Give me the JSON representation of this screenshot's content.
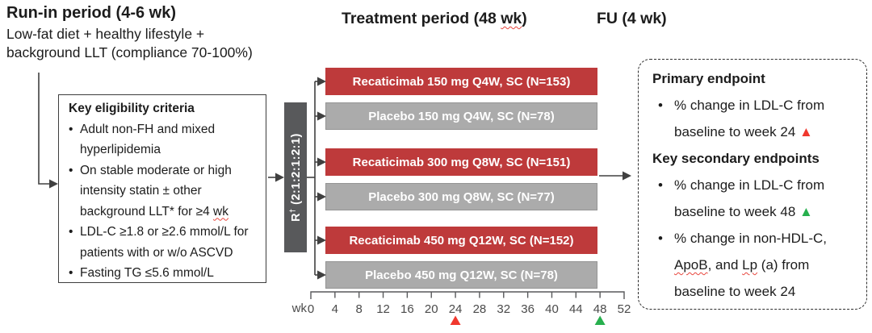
{
  "colors": {
    "active_arm_red": "#be3a3b",
    "placebo_gray": "#ababab",
    "randomization_gray": "#58595b",
    "marker_red": "#f0382e",
    "marker_green": "#27b04e",
    "squiggle_red": "#e8453c"
  },
  "headers": {
    "run_in_title": "Run-in period (4-6 wk)",
    "run_in_line1": "Low-fat diet + healthy lifestyle +",
    "run_in_line2": "background LLT (compliance 70-100%)",
    "treatment_prefix": "Treatment period (48 ",
    "treatment_wavy": "wk",
    "treatment_suffix": ")",
    "fu": "FU (4 wk)"
  },
  "eligibility": {
    "title": "Key eligibility criteria",
    "b1l1": "Adult non-FH and mixed",
    "b1l2": "hyperlipidemia",
    "b2l1": "On stable moderate or high",
    "b2l2": "intensity statin ± other",
    "b2l3a": "background LLT* for ≥4 ",
    "b2l3wavy": "wk",
    "b3l1": "LDL-C ≥1.8 or ≥2.6 mmol/L for",
    "b3l2": "patients with or w/o ASCVD",
    "b4l1": "Fasting TG ≤5.6 mmol/L"
  },
  "randomization": {
    "r": "R",
    "dagger": "†",
    "ratio": " (2:1:2:1:2:1)"
  },
  "arms": [
    {
      "label": "Recaticimab 150 mg Q4W, SC (N=153)",
      "type": "active"
    },
    {
      "label": "Placebo 150 mg Q4W, SC (N=78)",
      "type": "placebo"
    },
    {
      "label": "Recaticimab 300 mg Q8W, SC (N=151)",
      "type": "active"
    },
    {
      "label": "Placebo 300 mg Q8W, SC (N=77)",
      "type": "placebo"
    },
    {
      "label": "Recaticimab 450 mg Q12W, SC (N=152)",
      "type": "active"
    },
    {
      "label": "Placebo 450 mg Q12W, SC (N=78)",
      "type": "placebo"
    }
  ],
  "axis": {
    "unit_label": "wk",
    "tick_labels": [
      "0",
      "4",
      "8",
      "12",
      "16",
      "20",
      "24",
      "28",
      "32",
      "36",
      "40",
      "44",
      "48",
      "52"
    ],
    "markers": [
      {
        "id": "week24-red",
        "tick_index": 6,
        "color": "#f0382e"
      },
      {
        "id": "week48-green",
        "tick_index": 12,
        "color": "#27b04e"
      }
    ]
  },
  "endpoints": {
    "primary_title": "Primary endpoint",
    "p1l1": "% change in LDL-C from",
    "p1l2": "baseline to week 24 ",
    "p1_marker": "▲",
    "secondary_title": "Key secondary endpoints",
    "s1l1": "% change in LDL-C from",
    "s1l2": "baseline to week 48 ",
    "s1_marker": "▲",
    "s2l1": "% change in non-HDL-C,",
    "s2l2a": "ApoB",
    "s2l2b": ", and ",
    "s2l2c": "Lp",
    "s2l2d": " (a) from",
    "s2l3": "baseline to week 24"
  }
}
